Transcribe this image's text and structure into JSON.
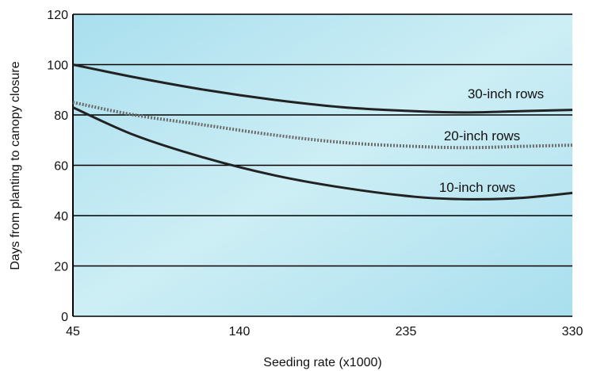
{
  "colors": {
    "plot_bg_light": "#cdeef5",
    "plot_bg_mid": "#a9dfee",
    "grid": "#000000",
    "solid_line": "#222222",
    "dotted_line": "#6b6b6b"
  },
  "chart_data": {
    "type": "line",
    "xlabel": "Seeding rate (x1000)",
    "ylabel": "Days from planting to canopy closure",
    "xlim": [
      45,
      330
    ],
    "ylim": [
      0,
      120
    ],
    "xticks": [
      45,
      140,
      235,
      330
    ],
    "yticks": [
      0,
      20,
      40,
      60,
      80,
      100,
      120
    ],
    "grid": "horizontal",
    "series": [
      {
        "name": "30-inch rows",
        "style": "solid",
        "x": [
          45,
          80,
          120,
          160,
          200,
          240,
          270,
          300,
          330
        ],
        "y": [
          100,
          95,
          90,
          86,
          83,
          81.5,
          81,
          81.5,
          82
        ]
      },
      {
        "name": "20-inch rows",
        "style": "dotted",
        "x": [
          45,
          80,
          120,
          160,
          200,
          240,
          270,
          300,
          330
        ],
        "y": [
          85,
          80,
          76,
          72,
          69,
          67.5,
          67,
          67.5,
          68
        ]
      },
      {
        "name": "10-inch rows",
        "style": "solid",
        "x": [
          45,
          80,
          120,
          160,
          200,
          240,
          270,
          300,
          330
        ],
        "y": [
          83,
          72,
          63,
          56,
          51,
          47.5,
          46.5,
          47,
          49
        ]
      }
    ]
  }
}
